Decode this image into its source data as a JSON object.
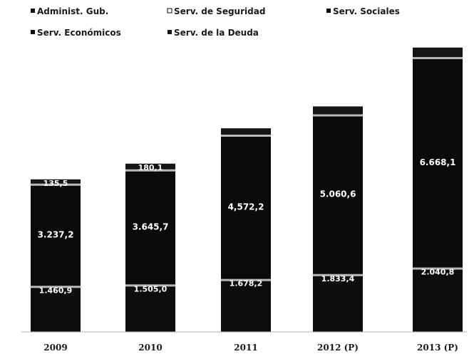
{
  "chart_data": {
    "type": "bar",
    "stacked": true,
    "categories": [
      "2009",
      "2010",
      "2011",
      "2012 (P)",
      "2013 (P)"
    ],
    "series": [
      {
        "name": "Administ. Gub.",
        "values": [
          0,
          0,
          0,
          0,
          0
        ],
        "color": "#111111"
      },
      {
        "name": "Serv. de Seguridad",
        "values": [
          0,
          0,
          0,
          0,
          0
        ],
        "color": "#bdbdbd"
      },
      {
        "name": "Serv. Sociales",
        "values": [
          3237.2,
          3645.7,
          4572.2,
          5060.6,
          6668.1
        ],
        "color": "#0a0a0a"
      },
      {
        "name": "Serv. Económicos",
        "values": [
          1460.9,
          1505.0,
          1678.2,
          1833.4,
          2040.8
        ],
        "color": "#0d0d0d"
      },
      {
        "name": "Serv. de la Deuda",
        "values": [
          135.5,
          180.1,
          200.0,
          250.0,
          300.0
        ],
        "color": "#151515"
      }
    ],
    "data_labels": {
      "Serv. Sociales": [
        "3.237,2",
        "3.645,7",
        "4,572,2",
        "5.060,6",
        "6.668,1"
      ],
      "Serv. Económicos": [
        "1.460,9",
        "1.505,0",
        "1.678,2",
        "1.833,4",
        "2.040,8"
      ],
      "Serv. de la Deuda": [
        "135,5",
        "180,1",
        "",
        "",
        ""
      ]
    },
    "title": "",
    "xlabel": "",
    "ylabel": "",
    "ylim": [
      0,
      9500
    ],
    "grid": false,
    "legend_position": "top"
  }
}
